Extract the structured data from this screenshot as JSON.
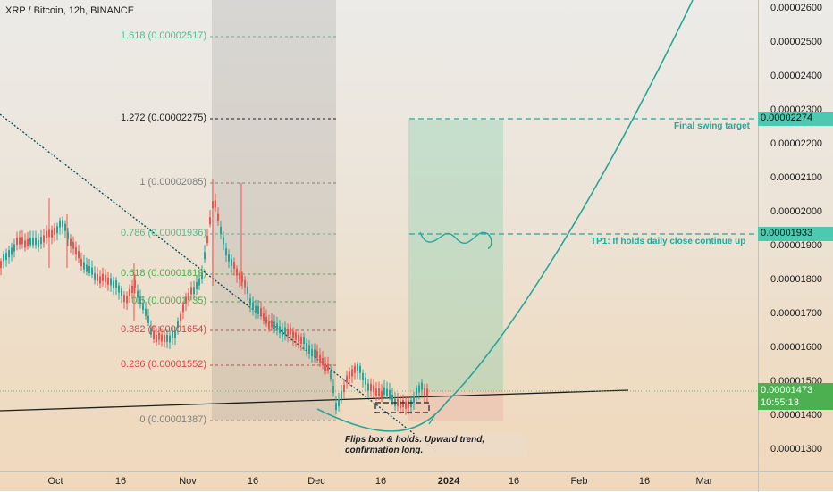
{
  "header": {
    "symbol_title": "XRP / Bitcoin, 12h, BINANCE"
  },
  "price_axis": {
    "ticks": [
      "0.00002600",
      "0.00002500",
      "0.00002400",
      "0.00002300",
      "0.00002200",
      "0.00002100",
      "0.00002000",
      "0.00001900",
      "0.00001800",
      "0.00001700",
      "0.00001600",
      "0.00001500",
      "0.00001400",
      "0.00001300"
    ],
    "target_tag": "0.00002274",
    "tp1_tag": "0.00001933",
    "current_price": "0.00001473",
    "countdown": "10:55:13"
  },
  "time_axis": {
    "labels": [
      "Oct",
      "16",
      "Nov",
      "16",
      "Dec",
      "16",
      "2024",
      "16",
      "Feb",
      "16",
      "Mar"
    ]
  },
  "fib_levels": [
    {
      "label": "1.618 (0.00002517)",
      "color": "#4cbf8f"
    },
    {
      "label": "1.272 (0.00002275)",
      "color": "#1e1e1e"
    },
    {
      "label": "1 (0.00002085)",
      "color": "#808080"
    },
    {
      "label": "0.786 (0.00001936)",
      "color": "#4cbf8f"
    },
    {
      "label": "0.618 (0.00001819)",
      "color": "#4caf50"
    },
    {
      "label": "0.5 (0.00001735)",
      "color": "#4caf50"
    },
    {
      "label": "0.382 (0.00001654)",
      "color": "#e0404a"
    },
    {
      "label": "0.236 (0.00001552)",
      "color": "#e0404a"
    },
    {
      "label": "0 (0.00001387)",
      "color": "#808080"
    }
  ],
  "annotations": {
    "final_target": "Final swing target",
    "tp1": "TP1: If holds daily close continue up",
    "note": "Flips box & holds. Upward trend, confirmation long."
  },
  "colors": {
    "up_candle": "#26a69a",
    "down_candle": "#ef5350",
    "teal": "#26a69a",
    "tag_teal": "#4cc9b0",
    "tag_green": "#4caf50",
    "trendline": "#1e1e1e",
    "dotted_downtrend": "#0f4c5c"
  }
}
